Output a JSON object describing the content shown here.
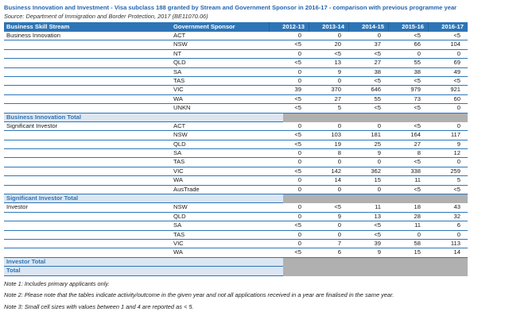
{
  "title": "Business Innovation and Investment - Visa subclass 188 granted by Stream and Government Sponsor in 2016-17 - comparison with previous programme year",
  "source": "Source: Department of Immigration and Border Protection, 2017 (BE11070.06)",
  "colors": {
    "header_bg": "#2e75b6",
    "line_blue": "#2e75b6",
    "total_bg": "#dce6f2",
    "total_text": "#2e75b6",
    "gray_cell": "#b0b0b0",
    "title_blue": "#2465ad",
    "body_text": "#1a1a1a"
  },
  "table": {
    "columns": [
      "Business Skill Stream",
      "Government Sponsor",
      "2012-13",
      "2013-14",
      "2014-15",
      "2015-16",
      "2016-17"
    ],
    "groups": [
      {
        "stream": "Business Innovation",
        "total_label": "Business Innovation Total",
        "rows": [
          {
            "sponsor": "ACT",
            "values": [
              "0",
              "0",
              "0",
              "<5",
              "<5"
            ]
          },
          {
            "sponsor": "NSW",
            "values": [
              "<5",
              "20",
              "37",
              "66",
              "104"
            ]
          },
          {
            "sponsor": "NT",
            "values": [
              "0",
              "<5",
              "<5",
              "0",
              "0"
            ]
          },
          {
            "sponsor": "QLD",
            "values": [
              "<5",
              "13",
              "27",
              "55",
              "69"
            ]
          },
          {
            "sponsor": "SA",
            "values": [
              "0",
              "9",
              "38",
              "38",
              "49"
            ]
          },
          {
            "sponsor": "TAS",
            "values": [
              "0",
              "0",
              "<5",
              "<5",
              "<5"
            ]
          },
          {
            "sponsor": "VIC",
            "values": [
              "39",
              "370",
              "646",
              "979",
              "921"
            ]
          },
          {
            "sponsor": "WA",
            "values": [
              "<5",
              "27",
              "55",
              "73",
              "60"
            ]
          },
          {
            "sponsor": "UNKN",
            "values": [
              "<5",
              "5",
              "<5",
              "<5",
              "0"
            ]
          }
        ]
      },
      {
        "stream": "Significant Investor",
        "total_label": "Significant Investor Total",
        "rows": [
          {
            "sponsor": "ACT",
            "values": [
              "0",
              "0",
              "0",
              "<5",
              "0"
            ]
          },
          {
            "sponsor": "NSW",
            "values": [
              "<5",
              "103",
              "181",
              "164",
              "117"
            ]
          },
          {
            "sponsor": "QLD",
            "values": [
              "<5",
              "19",
              "25",
              "27",
              "9"
            ]
          },
          {
            "sponsor": "SA",
            "values": [
              "0",
              "8",
              "9",
              "8",
              "12"
            ]
          },
          {
            "sponsor": "TAS",
            "values": [
              "0",
              "0",
              "0",
              "<5",
              "0"
            ]
          },
          {
            "sponsor": "VIC",
            "values": [
              "<5",
              "142",
              "362",
              "338",
              "259"
            ]
          },
          {
            "sponsor": "WA",
            "values": [
              "0",
              "14",
              "15",
              "11",
              "5"
            ]
          },
          {
            "sponsor": "AusTrade",
            "values": [
              "0",
              "0",
              "0",
              "<5",
              "<5"
            ]
          }
        ]
      },
      {
        "stream": "Investor",
        "total_label": "Investor Total",
        "rows": [
          {
            "sponsor": "NSW",
            "values": [
              "0",
              "<5",
              "11",
              "18",
              "43"
            ]
          },
          {
            "sponsor": "QLD",
            "values": [
              "0",
              "9",
              "13",
              "28",
              "32"
            ]
          },
          {
            "sponsor": "SA",
            "values": [
              "<5",
              "0",
              "<5",
              "11",
              "6"
            ]
          },
          {
            "sponsor": "TAS",
            "values": [
              "0",
              "0",
              "<5",
              "0",
              "0"
            ]
          },
          {
            "sponsor": "VIC",
            "values": [
              "0",
              "7",
              "39",
              "58",
              "113"
            ]
          },
          {
            "sponsor": "WA",
            "values": [
              "<5",
              "6",
              "9",
              "15",
              "14"
            ]
          }
        ]
      }
    ],
    "grand_total_label": "Total"
  },
  "notes": [
    "Note 1: Includes primary applicants only.",
    "Note 2: Please note that the tables indicate activity/outcome in the given year and not all applications received in a year are finalised in the same year.",
    "Note 3: Small cell sizes with values between 1 and 4 are reported as < 5."
  ]
}
